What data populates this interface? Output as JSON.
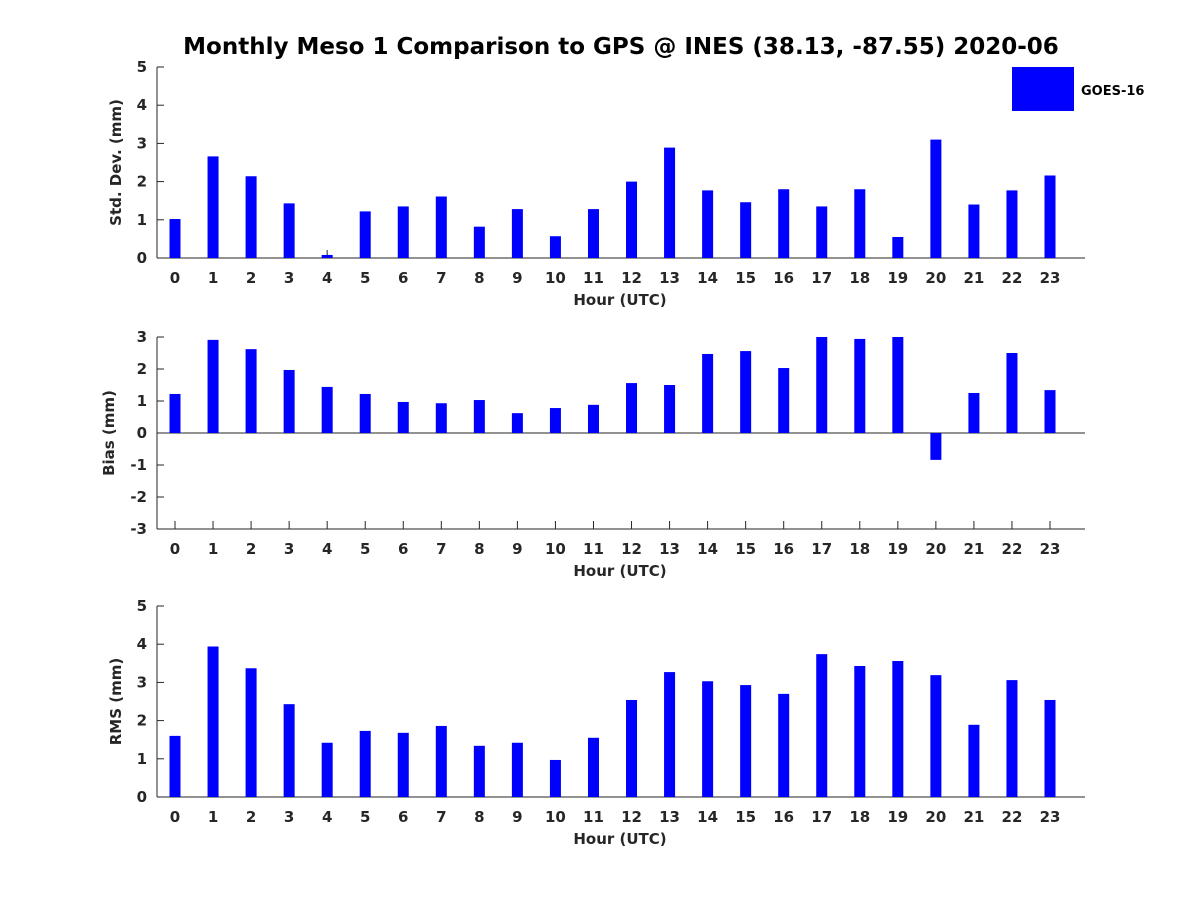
{
  "title": "Monthly Meso 1 Comparison to GPS @ INES (38.13, -87.55) 2020-06",
  "legend": {
    "label": "GOES-16",
    "color": "#0000ff"
  },
  "chart_data": [
    {
      "type": "bar",
      "xlabel": "Hour (UTC)",
      "ylabel": "Std. Dev. (mm)",
      "ylim": [
        0,
        5
      ],
      "yticks": [
        "0",
        "1",
        "2",
        "3",
        "4",
        "5"
      ],
      "categories": [
        "0",
        "1",
        "2",
        "3",
        "4",
        "5",
        "6",
        "7",
        "8",
        "9",
        "10",
        "11",
        "12",
        "13",
        "14",
        "15",
        "16",
        "17",
        "18",
        "19",
        "20",
        "21",
        "22",
        "23"
      ],
      "series": [
        {
          "name": "GOES-16",
          "color": "#0000ff",
          "values": [
            1.02,
            2.66,
            2.14,
            1.43,
            0.08,
            1.22,
            1.35,
            1.61,
            0.82,
            1.28,
            0.57,
            1.28,
            2.0,
            2.89,
            1.77,
            1.46,
            1.8,
            1.35,
            1.8,
            0.55,
            3.1,
            1.4,
            1.77,
            2.16
          ]
        }
      ]
    },
    {
      "type": "bar",
      "xlabel": "Hour (UTC)",
      "ylabel": "Bias (mm)",
      "ylim": [
        -3,
        3
      ],
      "yticks": [
        "-3",
        "-2",
        "-1",
        "0",
        "1",
        "2",
        "3"
      ],
      "categories": [
        "0",
        "1",
        "2",
        "3",
        "4",
        "5",
        "6",
        "7",
        "8",
        "9",
        "10",
        "11",
        "12",
        "13",
        "14",
        "15",
        "16",
        "17",
        "18",
        "19",
        "20",
        "21",
        "22",
        "23"
      ],
      "series": [
        {
          "name": "GOES-16",
          "color": "#0000ff",
          "values": [
            1.22,
            2.91,
            2.62,
            1.97,
            1.44,
            1.22,
            0.97,
            0.93,
            1.03,
            0.62,
            0.78,
            0.88,
            1.56,
            1.5,
            2.47,
            2.56,
            2.03,
            3.0,
            2.94,
            3.0,
            -0.84,
            1.25,
            2.5,
            1.34
          ]
        }
      ]
    },
    {
      "type": "bar",
      "xlabel": "Hour (UTC)",
      "ylabel": "RMS (mm)",
      "ylim": [
        0,
        5
      ],
      "yticks": [
        "0",
        "1",
        "2",
        "3",
        "4",
        "5"
      ],
      "categories": [
        "0",
        "1",
        "2",
        "3",
        "4",
        "5",
        "6",
        "7",
        "8",
        "9",
        "10",
        "11",
        "12",
        "13",
        "14",
        "15",
        "16",
        "17",
        "18",
        "19",
        "20",
        "21",
        "22",
        "23"
      ],
      "series": [
        {
          "name": "GOES-16",
          "color": "#0000ff",
          "values": [
            1.6,
            3.94,
            3.37,
            2.43,
            1.42,
            1.73,
            1.68,
            1.86,
            1.34,
            1.42,
            0.97,
            1.55,
            2.54,
            3.27,
            3.03,
            2.93,
            2.7,
            3.74,
            3.43,
            3.56,
            3.19,
            1.89,
            3.06,
            2.54
          ]
        }
      ]
    }
  ]
}
